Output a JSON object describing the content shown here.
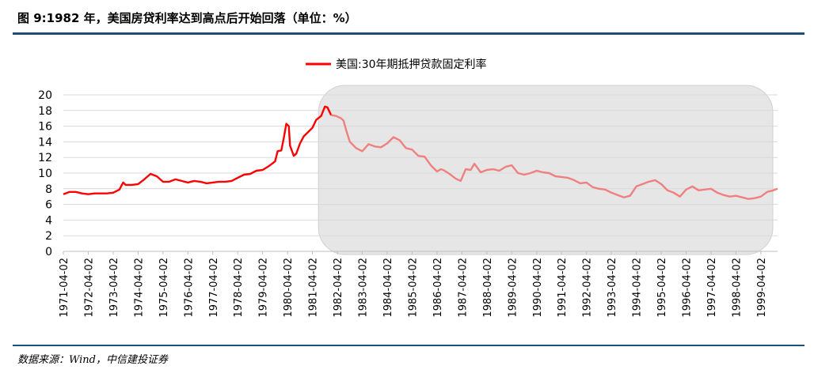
{
  "title": "图 9:1982 年，美国房贷利率达到高点后开始回落（单位：%）",
  "source": "数据来源：Wind，中信建投证券",
  "colors": {
    "line": "#ff0000",
    "line_highlight": "#f08080",
    "highlight_box": "#e6e6e6",
    "rule": "#1f4e79",
    "grid": "#d9d9d9"
  },
  "chart_data": {
    "type": "line",
    "legend_position": "top-center",
    "grid": true,
    "ylim": [
      0,
      20
    ],
    "yticks": [
      0,
      2,
      4,
      6,
      8,
      10,
      12,
      14,
      16,
      18,
      20
    ],
    "xlim": [
      1971.25,
      1999.92
    ],
    "xticks": [
      "1971-04-02",
      "1972-04-02",
      "1973-04-02",
      "1974-04-02",
      "1975-04-02",
      "1976-04-02",
      "1977-04-02",
      "1978-04-02",
      "1979-04-02",
      "1980-04-02",
      "1981-04-02",
      "1982-04-02",
      "1983-04-02",
      "1984-04-02",
      "1985-04-02",
      "1986-04-02",
      "1987-04-02",
      "1988-04-02",
      "1989-04-02",
      "1990-04-02",
      "1991-04-02",
      "1992-04-02",
      "1993-04-02",
      "1994-04-02",
      "1995-04-02",
      "1996-04-02",
      "1997-04-02",
      "1998-04-02",
      "1999-04-02"
    ],
    "highlight_range": [
      1982.0,
      1999.92
    ],
    "series": [
      {
        "name": "美国:30年期抵押贷款固定利率",
        "points": [
          [
            1971.25,
            7.3
          ],
          [
            1971.5,
            7.6
          ],
          [
            1971.75,
            7.6
          ],
          [
            1972.0,
            7.4
          ],
          [
            1972.25,
            7.3
          ],
          [
            1972.5,
            7.4
          ],
          [
            1972.75,
            7.4
          ],
          [
            1973.0,
            7.4
          ],
          [
            1973.25,
            7.5
          ],
          [
            1973.5,
            7.9
          ],
          [
            1973.65,
            8.8
          ],
          [
            1973.75,
            8.5
          ],
          [
            1974.0,
            8.5
          ],
          [
            1974.25,
            8.6
          ],
          [
            1974.5,
            9.2
          ],
          [
            1974.75,
            9.9
          ],
          [
            1975.0,
            9.6
          ],
          [
            1975.25,
            8.9
          ],
          [
            1975.5,
            8.9
          ],
          [
            1975.75,
            9.2
          ],
          [
            1976.0,
            9.0
          ],
          [
            1976.25,
            8.8
          ],
          [
            1976.5,
            9.0
          ],
          [
            1976.75,
            8.9
          ],
          [
            1977.0,
            8.7
          ],
          [
            1977.25,
            8.8
          ],
          [
            1977.5,
            8.9
          ],
          [
            1977.75,
            8.9
          ],
          [
            1978.0,
            9.0
          ],
          [
            1978.25,
            9.4
          ],
          [
            1978.5,
            9.8
          ],
          [
            1978.75,
            9.9
          ],
          [
            1979.0,
            10.3
          ],
          [
            1979.25,
            10.4
          ],
          [
            1979.5,
            10.9
          ],
          [
            1979.75,
            11.5
          ],
          [
            1979.85,
            12.8
          ],
          [
            1980.0,
            12.9
          ],
          [
            1980.1,
            14.5
          ],
          [
            1980.2,
            16.3
          ],
          [
            1980.3,
            16.0
          ],
          [
            1980.35,
            13.5
          ],
          [
            1980.5,
            12.2
          ],
          [
            1980.6,
            12.5
          ],
          [
            1980.75,
            13.8
          ],
          [
            1980.9,
            14.7
          ],
          [
            1981.0,
            15.0
          ],
          [
            1981.25,
            15.8
          ],
          [
            1981.4,
            16.8
          ],
          [
            1981.6,
            17.3
          ],
          [
            1981.75,
            18.5
          ],
          [
            1981.85,
            18.4
          ],
          [
            1982.0,
            17.4
          ],
          [
            1982.2,
            17.3
          ],
          [
            1982.4,
            17.0
          ],
          [
            1982.5,
            16.7
          ],
          [
            1982.6,
            15.5
          ],
          [
            1982.75,
            14.0
          ],
          [
            1983.0,
            13.2
          ],
          [
            1983.25,
            12.8
          ],
          [
            1983.5,
            13.7
          ],
          [
            1983.75,
            13.4
          ],
          [
            1984.0,
            13.3
          ],
          [
            1984.25,
            13.8
          ],
          [
            1984.5,
            14.6
          ],
          [
            1984.75,
            14.2
          ],
          [
            1985.0,
            13.2
          ],
          [
            1985.25,
            13.0
          ],
          [
            1985.5,
            12.2
          ],
          [
            1985.75,
            12.1
          ],
          [
            1986.0,
            11.0
          ],
          [
            1986.25,
            10.2
          ],
          [
            1986.4,
            10.5
          ],
          [
            1986.5,
            10.4
          ],
          [
            1986.75,
            9.9
          ],
          [
            1987.0,
            9.3
          ],
          [
            1987.2,
            9.0
          ],
          [
            1987.4,
            10.5
          ],
          [
            1987.6,
            10.4
          ],
          [
            1987.75,
            11.2
          ],
          [
            1988.0,
            10.1
          ],
          [
            1988.25,
            10.4
          ],
          [
            1988.5,
            10.5
          ],
          [
            1988.75,
            10.3
          ],
          [
            1989.0,
            10.8
          ],
          [
            1989.25,
            11.0
          ],
          [
            1989.5,
            10.0
          ],
          [
            1989.75,
            9.8
          ],
          [
            1990.0,
            10.0
          ],
          [
            1990.25,
            10.3
          ],
          [
            1990.5,
            10.1
          ],
          [
            1990.75,
            10.0
          ],
          [
            1991.0,
            9.6
          ],
          [
            1991.25,
            9.5
          ],
          [
            1991.5,
            9.4
          ],
          [
            1991.75,
            9.1
          ],
          [
            1992.0,
            8.7
          ],
          [
            1992.25,
            8.8
          ],
          [
            1992.5,
            8.2
          ],
          [
            1992.75,
            8.0
          ],
          [
            1993.0,
            7.9
          ],
          [
            1993.25,
            7.5
          ],
          [
            1993.5,
            7.2
          ],
          [
            1993.75,
            6.9
          ],
          [
            1994.0,
            7.1
          ],
          [
            1994.25,
            8.3
          ],
          [
            1994.5,
            8.6
          ],
          [
            1994.75,
            8.9
          ],
          [
            1995.0,
            9.1
          ],
          [
            1995.25,
            8.6
          ],
          [
            1995.5,
            7.8
          ],
          [
            1995.75,
            7.5
          ],
          [
            1996.0,
            7.0
          ],
          [
            1996.25,
            7.9
          ],
          [
            1996.5,
            8.3
          ],
          [
            1996.75,
            7.8
          ],
          [
            1997.0,
            7.9
          ],
          [
            1997.25,
            8.0
          ],
          [
            1997.5,
            7.5
          ],
          [
            1997.75,
            7.2
          ],
          [
            1998.0,
            7.0
          ],
          [
            1998.25,
            7.1
          ],
          [
            1998.5,
            6.9
          ],
          [
            1998.75,
            6.7
          ],
          [
            1999.0,
            6.8
          ],
          [
            1999.25,
            7.0
          ],
          [
            1999.5,
            7.6
          ],
          [
            1999.75,
            7.8
          ],
          [
            1999.92,
            8.0
          ]
        ]
      }
    ]
  }
}
